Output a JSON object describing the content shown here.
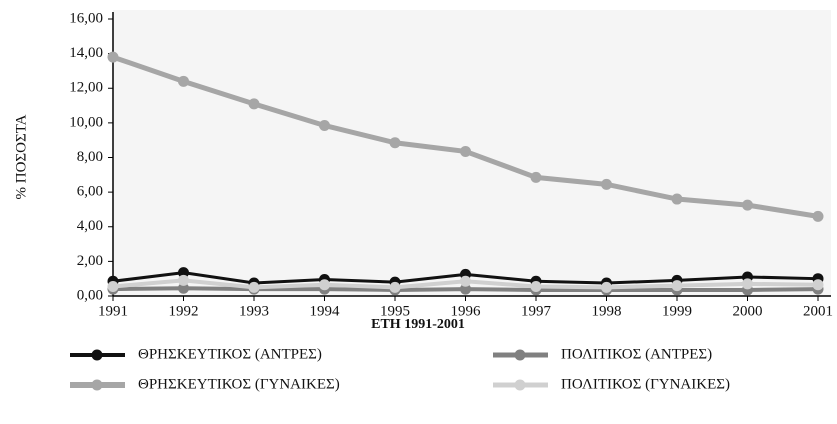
{
  "chart_data": {
    "type": "line",
    "x_label": "ΕΤΗ 1991-2001",
    "y_label": "% ΠΟΣΟΣΤΑ",
    "x": [
      1991,
      1992,
      1993,
      1994,
      1995,
      1996,
      1997,
      1998,
      1999,
      2000,
      2001
    ],
    "xlim": [
      1991,
      2001
    ],
    "xticks": [
      1991,
      1992,
      1993,
      1994,
      1995,
      1996,
      1997,
      1998,
      1999,
      2000,
      2001
    ],
    "ylim": [
      0,
      16
    ],
    "yticks": [
      {
        "value": 0,
        "label": "0,00"
      },
      {
        "value": 2,
        "label": "2,00"
      },
      {
        "value": 4,
        "label": "4,00"
      },
      {
        "value": 6,
        "label": "6,00"
      },
      {
        "value": 8,
        "label": "8,00"
      },
      {
        "value": 10,
        "label": "10,00"
      },
      {
        "value": 12,
        "label": "12,00"
      },
      {
        "value": 14,
        "label": "14,00"
      },
      {
        "value": 16,
        "label": "16,00"
      }
    ],
    "series": [
      {
        "name": "ΘΡΗΣΚΕΥΤΙΚΟΣ (ΑΝΤΡΕΣ)",
        "color": "#111111",
        "values": [
          0.85,
          1.35,
          0.75,
          0.95,
          0.8,
          1.25,
          0.85,
          0.75,
          0.9,
          1.1,
          1.0
        ]
      },
      {
        "name": "ΘΡΗΣΚΕΥΤΙΚΟΣ (ΓΥΝΑΙΚΕΣ)",
        "color": "#a6a6a6",
        "values": [
          13.8,
          12.4,
          11.1,
          9.85,
          8.85,
          8.35,
          6.85,
          6.45,
          5.6,
          5.25,
          4.6
        ]
      },
      {
        "name": "ΠΟΛΙΤΙΚΟΣ (ΑΝΤΡΕΣ)",
        "color": "#808080",
        "values": [
          0.4,
          0.45,
          0.4,
          0.4,
          0.35,
          0.4,
          0.35,
          0.35,
          0.35,
          0.35,
          0.4
        ]
      },
      {
        "name": "ΠΟΛΙΤΙΚΟΣ (ΓΥΝΑΙΚΕΣ)",
        "color": "#d0d0d0",
        "values": [
          0.55,
          0.9,
          0.5,
          0.65,
          0.5,
          0.85,
          0.55,
          0.5,
          0.6,
          0.7,
          0.65
        ]
      }
    ]
  }
}
